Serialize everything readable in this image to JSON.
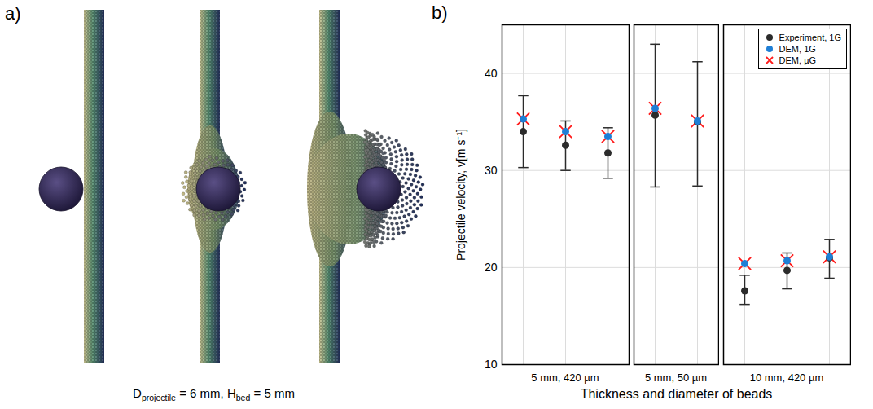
{
  "panel_a": {
    "label": "a)",
    "caption": [
      {
        "text": "D"
      },
      {
        "text": "projectile",
        "sub": true
      },
      {
        "text": " = 6 mm, "
      },
      {
        "text": "H"
      },
      {
        "text": "bed",
        "sub": true
      },
      {
        "text": " = 5 mm"
      }
    ]
  },
  "chart_data": {
    "type": "scatter",
    "label": "b)",
    "ylabel": "Projectile velocity, v[m s⁻¹]",
    "xlabel": "Thickness and diameter of beads",
    "ylim": [
      10,
      45
    ],
    "yticks": [
      10,
      20,
      30,
      40
    ],
    "grid": true,
    "legend": "northeast",
    "tick_labels": "y",
    "panels": [
      {
        "category": "5 mm, 420 µm",
        "series": [
          {
            "name": "Experiment, 1G",
            "color": "#2b2b2b",
            "marker": "circle",
            "values": [
              34.0,
              32.6,
              31.8
            ],
            "error_range": [
              [
                30.3,
                37.7
              ],
              [
                30.0,
                35.1
              ],
              [
                29.2,
                34.4
              ]
            ]
          },
          {
            "name": "DEM, 1G",
            "color": "#1f7fd6",
            "marker": "circle",
            "values": [
              35.3,
              34.0,
              33.5
            ]
          },
          {
            "name": "DEM, µG",
            "color": "#ff1a1a",
            "marker": "x",
            "values": [
              35.3,
              34.0,
              33.5
            ]
          }
        ]
      },
      {
        "category": "5 mm, 50 µm",
        "series": [
          {
            "name": "Experiment, 1G",
            "color": "#2b2b2b",
            "marker": "circle",
            "values": [
              35.7,
              35.0
            ],
            "error_range": [
              [
                28.3,
                43.0
              ],
              [
                28.4,
                41.2
              ]
            ]
          },
          {
            "name": "DEM, 1G",
            "color": "#1f7fd6",
            "marker": "circle",
            "values": [
              36.4,
              35.1
            ]
          },
          {
            "name": "DEM, µG",
            "color": "#ff1a1a",
            "marker": "x",
            "values": [
              36.4,
              35.1
            ]
          }
        ]
      },
      {
        "category": "10 mm, 420 µm",
        "series": [
          {
            "name": "Experiment, 1G",
            "color": "#2b2b2b",
            "marker": "circle",
            "values": [
              17.6,
              19.7,
              21.0
            ],
            "error_range": [
              [
                16.2,
                19.2
              ],
              [
                17.8,
                21.5
              ],
              [
                18.9,
                22.9
              ]
            ]
          },
          {
            "name": "DEM, 1G",
            "color": "#1f7fd6",
            "marker": "circle",
            "values": [
              20.4,
              20.7,
              21.1
            ]
          },
          {
            "name": "DEM, µG",
            "color": "#ff1a1a",
            "marker": "x",
            "values": [
              20.4,
              20.7,
              21.1
            ]
          }
        ]
      }
    ]
  }
}
